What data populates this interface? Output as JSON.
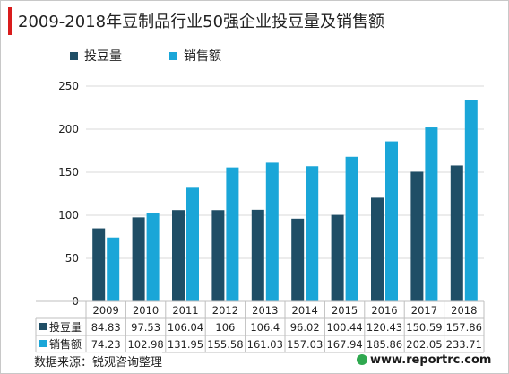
{
  "chart_data": {
    "type": "bar",
    "title": "2009-2018年豆制品行业50强企业投豆量及销售额",
    "categories": [
      "2009",
      "2010",
      "2011",
      "2012",
      "2013",
      "2014",
      "2015",
      "2016",
      "2017",
      "2018"
    ],
    "series": [
      {
        "name": "投豆量",
        "color": "#1f4e66",
        "values": [
          84.83,
          97.53,
          106.04,
          106,
          106.4,
          96.02,
          100.44,
          120.43,
          150.59,
          157.86
        ],
        "labels": [
          "84.83",
          "97.53",
          "106.04",
          "106",
          "106.4",
          "96.02",
          "100.44",
          "120.43",
          "150.59",
          "157.86"
        ]
      },
      {
        "name": "销售额",
        "color": "#1aa6d8",
        "values": [
          74.23,
          102.98,
          131.95,
          155.58,
          161.03,
          157.03,
          167.94,
          185.86,
          202.05,
          233.71
        ],
        "labels": [
          "74.23",
          "102.98",
          "131.95",
          "155.58",
          "161.03",
          "157.03",
          "167.94",
          "185.86",
          "202.05",
          "233.71"
        ]
      }
    ],
    "yticks": [
      0,
      50,
      100,
      150,
      200,
      250
    ],
    "ylim": [
      0,
      250
    ],
    "grid": true,
    "legend": "top",
    "data_table": true
  },
  "source": "数据来源：锐观咨询整理",
  "watermark": "www.reportrc.com"
}
